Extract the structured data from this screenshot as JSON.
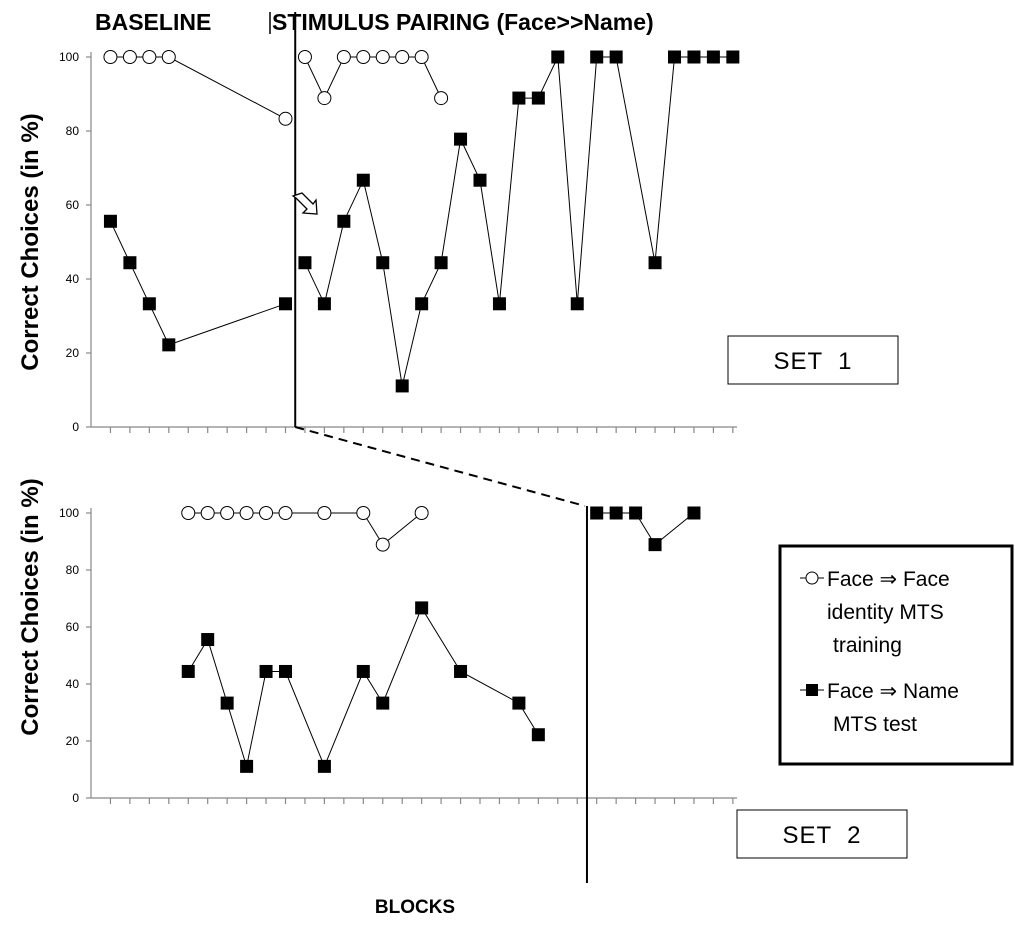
{
  "chart_data": [
    {
      "type": "line",
      "panel_label": "SET  1",
      "phase_labels": [
        "BASELINE",
        "STIMULUS PAIRING (Face>>Name)"
      ],
      "ylabel": "Correct Choices (in %)",
      "ylim": [
        0,
        100
      ],
      "yticks": [
        "0",
        "20",
        "40",
        "60",
        "80",
        "100"
      ],
      "phase_change_after_block": 10,
      "series": [
        {
          "name": "Face ⇒ Face identity MTS training",
          "marker": "open-circle",
          "segments": [
            [
              [
                1,
                100
              ],
              [
                2,
                100
              ],
              [
                3,
                100
              ],
              [
                4,
                100
              ],
              [
                10,
                83.3
              ]
            ],
            [
              [
                11,
                100
              ],
              [
                12,
                88.9
              ],
              [
                13,
                100
              ],
              [
                14,
                100
              ],
              [
                15,
                100
              ],
              [
                16,
                100
              ],
              [
                17,
                100
              ],
              [
                18,
                88.9
              ]
            ]
          ]
        },
        {
          "name": "Face ⇒ Name MTS test",
          "marker": "filled-square",
          "segments": [
            [
              [
                1,
                55.6
              ],
              [
                2,
                44.4
              ],
              [
                3,
                33.3
              ],
              [
                4,
                22.2
              ],
              [
                10,
                33.3
              ]
            ],
            [
              [
                11,
                44.4
              ],
              [
                12,
                33.3
              ],
              [
                13,
                55.6
              ],
              [
                14,
                66.7
              ],
              [
                15,
                44.4
              ],
              [
                16,
                11.1
              ],
              [
                17,
                33.3
              ],
              [
                18,
                44.4
              ],
              [
                19,
                77.8
              ],
              [
                20,
                66.7
              ],
              [
                21,
                33.3
              ],
              [
                22,
                88.9
              ],
              [
                23,
                88.9
              ],
              [
                24,
                100
              ],
              [
                25,
                33.3
              ],
              [
                26,
                100
              ],
              [
                27,
                100
              ],
              [
                29,
                44.4
              ],
              [
                30,
                100
              ],
              [
                31,
                100
              ],
              [
                32,
                100
              ],
              [
                33,
                100
              ]
            ]
          ]
        }
      ]
    },
    {
      "type": "line",
      "panel_label": "SET  2",
      "xlabel": "BLOCKS",
      "ylabel": "Correct Choices (in %)",
      "ylim": [
        0,
        100
      ],
      "yticks": [
        "0",
        "20",
        "40",
        "60",
        "80",
        "100"
      ],
      "phase_change_after_block": 25,
      "series": [
        {
          "name": "Face ⇒ Face identity MTS training",
          "marker": "open-circle",
          "segments": [
            [
              [
                5,
                100
              ],
              [
                6,
                100
              ],
              [
                7,
                100
              ],
              [
                8,
                100
              ],
              [
                9,
                100
              ],
              [
                10,
                100
              ],
              [
                12,
                100
              ],
              [
                14,
                100
              ],
              [
                15,
                88.9
              ],
              [
                17,
                100
              ]
            ]
          ]
        },
        {
          "name": "Face ⇒ Name MTS test",
          "marker": "filled-square",
          "segments": [
            [
              [
                5,
                44.4
              ],
              [
                6,
                55.6
              ],
              [
                7,
                33.3
              ],
              [
                8,
                11.1
              ],
              [
                9,
                44.4
              ],
              [
                10,
                44.4
              ],
              [
                12,
                11.1
              ],
              [
                14,
                44.4
              ],
              [
                15,
                33.3
              ],
              [
                17,
                66.7
              ],
              [
                19,
                44.4
              ],
              [
                22,
                33.3
              ],
              [
                23,
                22.2
              ]
            ],
            [
              [
                26,
                100
              ],
              [
                27,
                100
              ],
              [
                28,
                100
              ],
              [
                29,
                88.9
              ],
              [
                31,
                100
              ]
            ]
          ]
        }
      ]
    }
  ],
  "legend": {
    "entries": [
      {
        "marker": "open-circle",
        "lines": [
          "Face ⇒ Face",
          "identity MTS",
          "training"
        ]
      },
      {
        "marker": "filled-square",
        "lines": [
          "Face ⇒ Name",
          "MTS test"
        ]
      }
    ]
  }
}
